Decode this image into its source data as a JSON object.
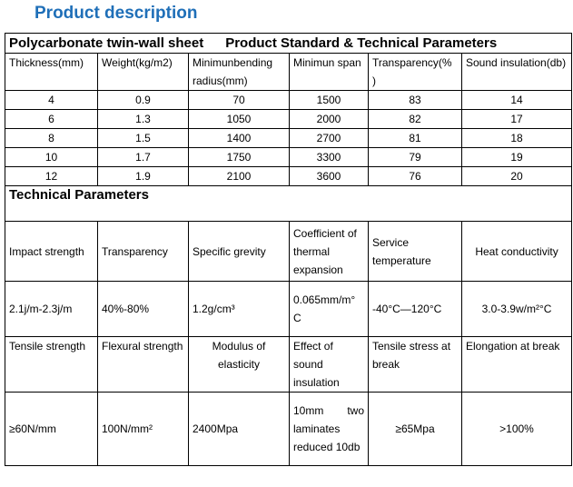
{
  "page_title": "Product description",
  "table_title": {
    "left": "Polycarbonate twin-wall sheet",
    "right": "Product Standard & Technical Parameters"
  },
  "standard_headers": [
    "Thickness(mm)",
    "Weight(kg/m2)",
    "Minimunbending radius(mm)",
    "Minimun span",
    "Transparency(% )",
    "Sound insulation(db)"
  ],
  "standard_rows": [
    [
      "4",
      "0.9",
      "70",
      "1500",
      "83",
      "14"
    ],
    [
      "6",
      "1.3",
      "1050",
      "2000",
      "82",
      "17"
    ],
    [
      "8",
      "1.5",
      "1400",
      "2700",
      "81",
      "18"
    ],
    [
      "10",
      "1.7",
      "1750",
      "3300",
      "79",
      "19"
    ],
    [
      "12",
      "1.9",
      "2100",
      "3600",
      "76",
      "20"
    ]
  ],
  "technical_title": "Technical Parameters",
  "tech_headers_1": [
    "Impact strength",
    "Transparency",
    "Specific grevity",
    "Coefficient of thermal expansion",
    "Service temperature",
    "Heat conductivity"
  ],
  "tech_values_1": [
    "2.1j/m-2.3j/m",
    "40%-80%",
    "1.2g/cm³",
    "0.065mm/m° C",
    "-40°C—120°C",
    "3.0-3.9w/m²°C"
  ],
  "tech_headers_2": [
    "Tensile strength",
    "Flexural strength",
    "Modulus of elasticity",
    "Effect of sound insulation",
    "Tensile stress at break",
    "Elongation at break"
  ],
  "tech_values_2": [
    "≥60N/mm",
    "100N/mm²",
    "2400Mpa",
    "10mm two laminates reduced 10db",
    "≥65Mpa",
    ">100%"
  ]
}
